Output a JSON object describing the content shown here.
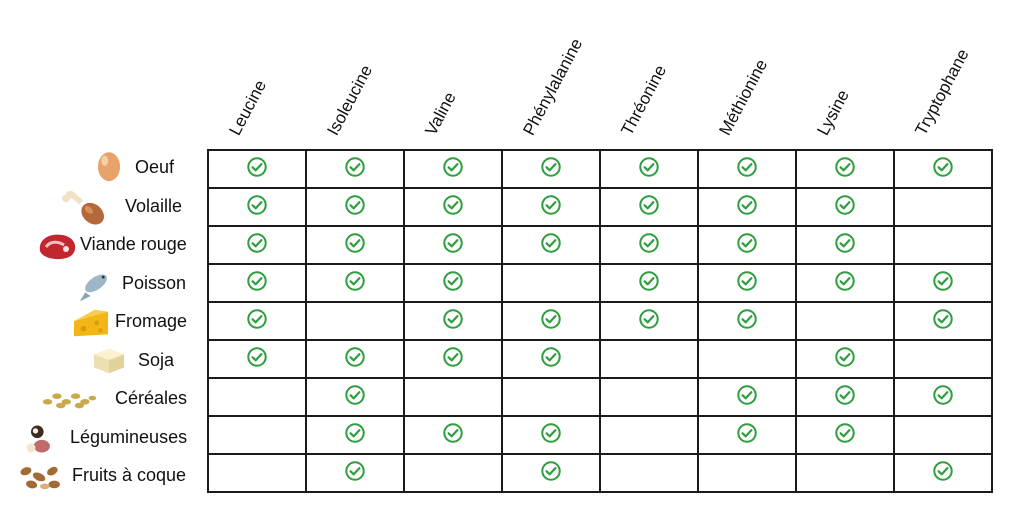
{
  "amino_acids": [
    "Leucine",
    "Isoleucine",
    "Valine",
    "Phénylalanine",
    "Thréonine",
    "Méthionine",
    "Lysine",
    "Tryptophane"
  ],
  "foods": [
    {
      "label": "Oeuf",
      "icon": "egg-icon"
    },
    {
      "label": "Volaille",
      "icon": "drumstick-icon"
    },
    {
      "label": "Viande rouge",
      "icon": "steak-icon"
    },
    {
      "label": "Poisson",
      "icon": "fish-icon"
    },
    {
      "label": "Fromage",
      "icon": "cheese-icon"
    },
    {
      "label": "Soja",
      "icon": "tofu-icon"
    },
    {
      "label": "Céréales",
      "icon": "grains-icon"
    },
    {
      "label": "Légumineuses",
      "icon": "legumes-icon"
    },
    {
      "label": "Fruits à coque",
      "icon": "nuts-icon"
    }
  ],
  "matrix": [
    [
      1,
      1,
      1,
      1,
      1,
      1,
      1,
      1
    ],
    [
      1,
      1,
      1,
      1,
      1,
      1,
      1,
      0
    ],
    [
      1,
      1,
      1,
      1,
      1,
      1,
      1,
      0
    ],
    [
      1,
      1,
      1,
      0,
      1,
      1,
      1,
      1
    ],
    [
      1,
      0,
      1,
      1,
      1,
      1,
      0,
      1
    ],
    [
      1,
      1,
      1,
      1,
      0,
      0,
      1,
      0
    ],
    [
      0,
      1,
      0,
      0,
      0,
      1,
      1,
      1
    ],
    [
      0,
      1,
      1,
      1,
      0,
      1,
      1,
      0
    ],
    [
      0,
      1,
      0,
      1,
      0,
      0,
      0,
      1
    ]
  ],
  "colors": {
    "check": "#2e9e3e",
    "border": "#1a1a1a"
  }
}
